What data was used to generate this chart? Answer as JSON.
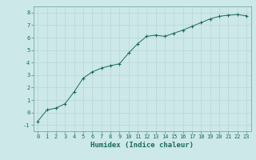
{
  "x": [
    0,
    1,
    2,
    3,
    4,
    5,
    6,
    7,
    8,
    9,
    10,
    11,
    12,
    13,
    14,
    15,
    16,
    17,
    18,
    19,
    20,
    21,
    22,
    23
  ],
  "y": [
    -0.7,
    0.2,
    0.35,
    0.7,
    1.65,
    2.75,
    3.25,
    3.55,
    3.75,
    3.9,
    4.75,
    5.5,
    6.1,
    6.2,
    6.1,
    6.35,
    6.6,
    6.9,
    7.2,
    7.5,
    7.7,
    7.8,
    7.85,
    7.75
  ],
  "xlabel": "Humidex (Indice chaleur)",
  "line_color": "#1a6b5a",
  "marker": "+",
  "bg_color": "#cce8e8",
  "grid_color": "#b8d4d4",
  "xlim": [
    -0.5,
    23.5
  ],
  "ylim": [
    -1.5,
    8.5
  ],
  "yticks": [
    -1,
    0,
    1,
    2,
    3,
    4,
    5,
    6,
    7,
    8
  ],
  "xticks": [
    0,
    1,
    2,
    3,
    4,
    5,
    6,
    7,
    8,
    9,
    10,
    11,
    12,
    13,
    14,
    15,
    16,
    17,
    18,
    19,
    20,
    21,
    22,
    23
  ],
  "tick_label_fontsize": 5.0,
  "xlabel_fontsize": 6.5,
  "marker_size": 2.5,
  "line_width": 0.7
}
